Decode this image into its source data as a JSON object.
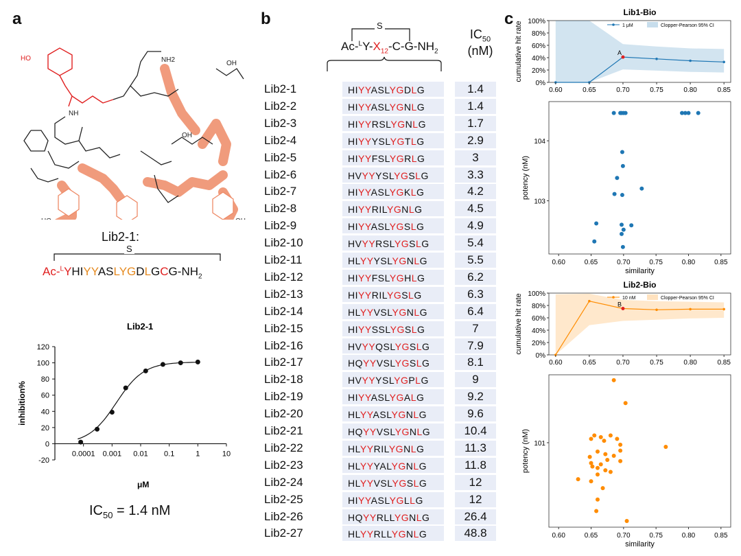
{
  "panels": {
    "a": "a",
    "b": "b",
    "c": "c"
  },
  "panel_a": {
    "compound_label": "Lib2-1:",
    "sequence_prefix": "Ac-",
    "sequence_L": "L",
    "sequence_Y": "Y",
    "sequence_parts": [
      {
        "t": "HI",
        "c": "#111"
      },
      {
        "t": "YY",
        "c": "#e68a1f"
      },
      {
        "t": "AS",
        "c": "#111"
      },
      {
        "t": "LYG",
        "c": "#e68a1f"
      },
      {
        "t": "D",
        "c": "#111"
      },
      {
        "t": "L",
        "c": "#e68a1f"
      },
      {
        "t": "G",
        "c": "#111"
      },
      {
        "t": "C",
        "c": "#e02020"
      },
      {
        "t": "G",
        "c": "#111"
      }
    ],
    "sequence_suffix": "-NH",
    "sequence_suffix_sub": "2",
    "bridge_label": "S",
    "ic50_text": "IC",
    "ic50_sub": "50",
    "ic50_value": " = 1.4 nM",
    "structure_labels": [
      "HO",
      "NH",
      "HO",
      "OH",
      "OH",
      "H",
      "NH2"
    ]
  },
  "panel_b": {
    "header_prefix": "Ac-",
    "header_L": "L",
    "header_Y": "Y-",
    "header_X": "X",
    "header_X_sub": "12",
    "header_suffix": "-C-G-NH",
    "header_suffix_sub": "2",
    "bridge_label": "S",
    "ic50_header_1": "IC",
    "ic50_header_sub": "50",
    "ic50_header_2": "(nM)",
    "rows": [
      {
        "name": "Lib2-1",
        "seq": "HIYYASLYGDLG",
        "ic50": "1.4"
      },
      {
        "name": "Lib2-2",
        "seq": "HIYYASLYGNLG",
        "ic50": "1.4"
      },
      {
        "name": "Lib2-3",
        "seq": "HIYYRSLYGNLG",
        "ic50": "1.7"
      },
      {
        "name": "Lib2-4",
        "seq": "HIYYYSLYGTLG",
        "ic50": "2.9"
      },
      {
        "name": "Lib2-5",
        "seq": "HIYYFSLYGRLG",
        "ic50": "3"
      },
      {
        "name": "Lib2-6",
        "seq": "HVYYYSLYGSLG",
        "ic50": "3.3"
      },
      {
        "name": "Lib2-7",
        "seq": "HIYYASLYGKLG",
        "ic50": "4.2"
      },
      {
        "name": "Lib2-8",
        "seq": "HIYYRILYGNLG",
        "ic50": "4.5"
      },
      {
        "name": "Lib2-9",
        "seq": "HIYYASLYGSLG",
        "ic50": "4.9"
      },
      {
        "name": "Lib2-10",
        "seq": "HVYYRSLYGSLG",
        "ic50": "5.4"
      },
      {
        "name": "Lib2-11",
        "seq": "HLYYYSLYGNLG",
        "ic50": "5.5"
      },
      {
        "name": "Lib2-12",
        "seq": "HIYYFSLYGHLG",
        "ic50": "6.2"
      },
      {
        "name": "Lib2-13",
        "seq": "HIYYRILYGSLG",
        "ic50": "6.3"
      },
      {
        "name": "Lib2-14",
        "seq": "HLYYVSLYGNLG",
        "ic50": "6.4"
      },
      {
        "name": "Lib2-15",
        "seq": "HIYYSSLYGSLG",
        "ic50": "7"
      },
      {
        "name": "Lib2-16",
        "seq": "HVYYQSLYGSLG",
        "ic50": "7.9"
      },
      {
        "name": "Lib2-17",
        "seq": "HQYYVSLYGSLG",
        "ic50": "8.1"
      },
      {
        "name": "Lib2-18",
        "seq": "HVYYYSLYGPLG",
        "ic50": "9"
      },
      {
        "name": "Lib2-19",
        "seq": "HIYYASLYGALG",
        "ic50": "9.2"
      },
      {
        "name": "Lib2-20",
        "seq": "HLYYASLYGNLG",
        "ic50": "9.6"
      },
      {
        "name": "Lib2-21",
        "seq": "HQYYVSLYGNLG",
        "ic50": "10.4"
      },
      {
        "name": "Lib2-22",
        "seq": "HLYYRILYGNLG",
        "ic50": "11.3"
      },
      {
        "name": "Lib2-23",
        "seq": "HLYYYALYGNLG",
        "ic50": "11.8"
      },
      {
        "name": "Lib2-24",
        "seq": "HLYYVSLYGSLG",
        "ic50": "12"
      },
      {
        "name": "Lib2-25",
        "seq": "HIYYASLYGLLG",
        "ic50": "12"
      },
      {
        "name": "Lib2-26",
        "seq": "HQYYRLLYGNLG",
        "ic50": "26.4"
      },
      {
        "name": "Lib2-27",
        "seq": "HLYYRLLYGNLG",
        "ic50": "48.8"
      }
    ]
  },
  "chart_data": [
    {
      "type": "scatter",
      "title": "Lib2-1",
      "xlabel": "μM",
      "ylabel": "inhibition%",
      "xscale": "log",
      "xlim": [
        1e-05,
        10
      ],
      "ylim": [
        -20,
        120
      ],
      "xticks": [
        "0.0001",
        "0.001",
        "0.01",
        "0.1",
        "1",
        "10"
      ],
      "yticks": [
        "-20",
        "0",
        "20",
        "40",
        "60",
        "80",
        "100",
        "120"
      ],
      "x": [
        8e-05,
        0.0003,
        0.001,
        0.003,
        0.015,
        0.06,
        0.25,
        1.0
      ],
      "y": [
        2,
        18,
        39,
        69,
        90,
        98,
        100,
        101
      ],
      "color": "#111111"
    },
    {
      "type": "line",
      "title": "Lib1-Bio",
      "xlabel": "",
      "ylabel": "cumulative hit rate",
      "xlim": [
        0.59,
        0.86
      ],
      "ylim": [
        0,
        100
      ],
      "xticks": [
        "0.60",
        "0.65",
        "0.70",
        "0.75",
        "0.80",
        "0.85"
      ],
      "yticks": [
        "0%",
        "20%",
        "40%",
        "60%",
        "80%",
        "100%"
      ],
      "series": [
        {
          "name": "1 μM",
          "x": [
            0.6,
            0.65,
            0.7,
            0.75,
            0.8,
            0.85
          ],
          "y": [
            0,
            0,
            41,
            38,
            35,
            33
          ]
        }
      ],
      "ci_name": "Clopper-Pearson 95% CI",
      "ci_upper": [
        100,
        100,
        62,
        58,
        55,
        54
      ],
      "ci_lower": [
        0,
        0,
        21,
        19,
        17,
        16
      ],
      "annotation": "A",
      "color": "#1f77b4"
    },
    {
      "type": "scatter",
      "title": "",
      "xlabel": "similarity",
      "ylabel": "potency (nM)",
      "yscale": "log",
      "xlim": [
        0.585,
        0.865
      ],
      "ylim": [
        130,
        45000
      ],
      "xticks": [
        "0.60",
        "0.65",
        "0.70",
        "0.75",
        "0.80",
        "0.85"
      ],
      "yticks": [
        "10^3",
        "10^4"
      ],
      "x": [
        0.685,
        0.695,
        0.697,
        0.7,
        0.703,
        0.79,
        0.795,
        0.8,
        0.815,
        0.698,
        0.699,
        0.69,
        0.728,
        0.686,
        0.698,
        0.658,
        0.697,
        0.712,
        0.7,
        0.655,
        0.697,
        0.699
      ],
      "y": [
        29000,
        29000,
        29000,
        29000,
        29000,
        29000,
        29000,
        29000,
        29000,
        6500,
        3800,
        2400,
        1600,
        1300,
        1250,
        420,
        400,
        390,
        330,
        210,
        280,
        170
      ],
      "color": "#1f77b4"
    },
    {
      "type": "line",
      "title": "Lib2-Bio",
      "xlabel": "",
      "ylabel": "cumulative hit rate",
      "xlim": [
        0.59,
        0.86
      ],
      "ylim": [
        0,
        100
      ],
      "xticks": [
        "0.60",
        "0.65",
        "0.70",
        "0.75",
        "0.80",
        "0.85"
      ],
      "yticks": [
        "0%",
        "20%",
        "40%",
        "60%",
        "80%",
        "100%"
      ],
      "series": [
        {
          "name": "10 nM",
          "x": [
            0.6,
            0.65,
            0.7,
            0.75,
            0.8,
            0.85
          ],
          "y": [
            0,
            87,
            75,
            73,
            74,
            74
          ]
        }
      ],
      "ci_name": "Clopper-Pearson 95% CI",
      "ci_upper": [
        98,
        99,
        89,
        87,
        86,
        85
      ],
      "ci_lower": [
        0,
        48,
        55,
        57,
        59,
        60
      ],
      "annotation": "B",
      "color": "#ff8c00"
    },
    {
      "type": "scatter",
      "title": "",
      "xlabel": "similarity",
      "ylabel": "potency (nM)",
      "yscale": "log",
      "xlim": [
        0.585,
        0.865
      ],
      "ylim": [
        1.2,
        55
      ],
      "xticks": [
        "0.60",
        "0.65",
        "0.70",
        "0.75",
        "0.80",
        "0.85"
      ],
      "yticks": [
        "10^1"
      ],
      "x": [
        0.685,
        0.703,
        0.655,
        0.665,
        0.68,
        0.69,
        0.65,
        0.67,
        0.695,
        0.695,
        0.765,
        0.66,
        0.672,
        0.685,
        0.648,
        0.675,
        0.695,
        0.65,
        0.665,
        0.652,
        0.66,
        0.672,
        0.68,
        0.66,
        0.63,
        0.65,
        0.668,
        0.66,
        0.658,
        0.705
      ],
      "y": [
        48,
        27,
        12,
        11.5,
        12,
        11,
        11,
        10.5,
        9.5,
        8.2,
        9,
        8,
        7.5,
        7.2,
        7,
        6.5,
        6.3,
        6,
        5.8,
        5.5,
        5.3,
        5,
        4.8,
        4.5,
        4,
        3.8,
        3.2,
        2.4,
        1.8,
        1.4
      ],
      "color": "#ff8c00"
    }
  ]
}
